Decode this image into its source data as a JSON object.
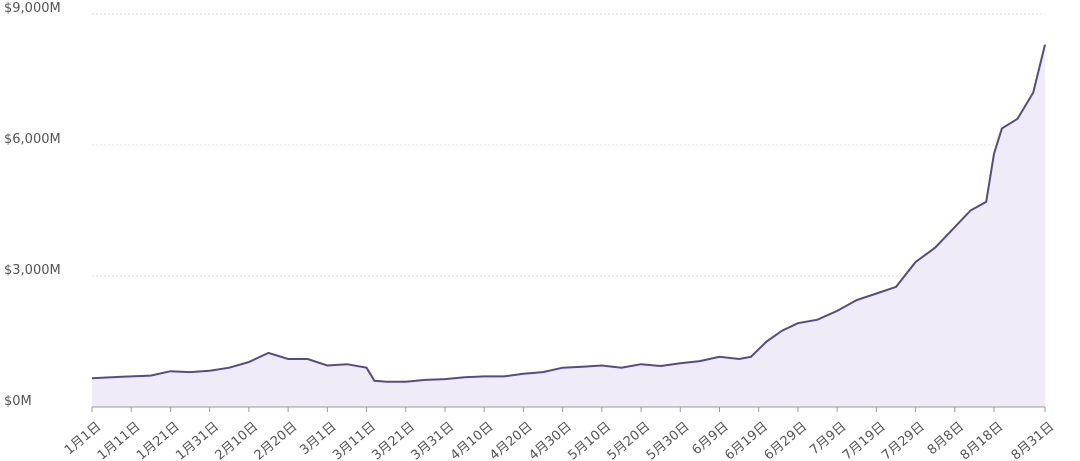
{
  "chart_data": {
    "type": "line",
    "x": [
      0,
      5,
      10,
      15,
      20,
      25,
      30,
      35,
      40,
      45,
      50,
      55,
      60,
      65,
      70,
      72,
      75,
      80,
      85,
      90,
      95,
      100,
      105,
      110,
      115,
      120,
      125,
      130,
      135,
      140,
      145,
      150,
      155,
      160,
      165,
      168,
      172,
      176,
      180,
      185,
      190,
      195,
      200,
      205,
      210,
      215,
      220,
      224,
      228,
      230,
      232,
      236,
      240,
      243
    ],
    "series": [
      {
        "color": "#574a8c",
        "fill": "#efecf8",
        "values": [
          660,
          680,
          700,
          720,
          820,
          800,
          830,
          900,
          1030,
          1240,
          1100,
          1100,
          950,
          980,
          900,
          600,
          580,
          580,
          620,
          640,
          680,
          700,
          700,
          760,
          800,
          900,
          920,
          950,
          900,
          980,
          940,
          1000,
          1050,
          1150,
          1100,
          1150,
          1500,
          1750,
          1920,
          2000,
          2200,
          2450,
          2600,
          2750,
          3320,
          3650,
          4120,
          4500,
          4700,
          5800,
          6380,
          6600,
          7200,
          8300
        ]
      }
    ],
    "xlim": [
      0,
      243
    ],
    "xticks": [
      {
        "value": 0,
        "label": "1月1日"
      },
      {
        "value": 10,
        "label": "1月11日"
      },
      {
        "value": 20,
        "label": "1月21日"
      },
      {
        "value": 30,
        "label": "1月31日"
      },
      {
        "value": 40,
        "label": "2月10日"
      },
      {
        "value": 50,
        "label": "2月20日"
      },
      {
        "value": 60,
        "label": "3月1日"
      },
      {
        "value": 70,
        "label": "3月11日"
      },
      {
        "value": 80,
        "label": "3月21日"
      },
      {
        "value": 90,
        "label": "3月31日"
      },
      {
        "value": 100,
        "label": "4月10日"
      },
      {
        "value": 110,
        "label": "4月20日"
      },
      {
        "value": 120,
        "label": "4月30日"
      },
      {
        "value": 130,
        "label": "5月10日"
      },
      {
        "value": 140,
        "label": "5月20日"
      },
      {
        "value": 150,
        "label": "5月30日"
      },
      {
        "value": 160,
        "label": "6月9日"
      },
      {
        "value": 170,
        "label": "6月19日"
      },
      {
        "value": 180,
        "label": "6月29日"
      },
      {
        "value": 190,
        "label": "7月9日"
      },
      {
        "value": 200,
        "label": "7月19日"
      },
      {
        "value": 210,
        "label": "7月29日"
      },
      {
        "value": 220,
        "label": "8月8日"
      },
      {
        "value": 230,
        "label": "8月18日"
      },
      {
        "value": 243,
        "label": "8月31日"
      }
    ],
    "ylim": [
      0,
      9000
    ],
    "yticks": [
      {
        "value": 0,
        "label": "$0M"
      },
      {
        "value": 3000,
        "label": "$3,000M"
      },
      {
        "value": 6000,
        "label": "$6,000M"
      },
      {
        "value": 9000,
        "label": "$9,000M"
      }
    ],
    "grid": true
  }
}
